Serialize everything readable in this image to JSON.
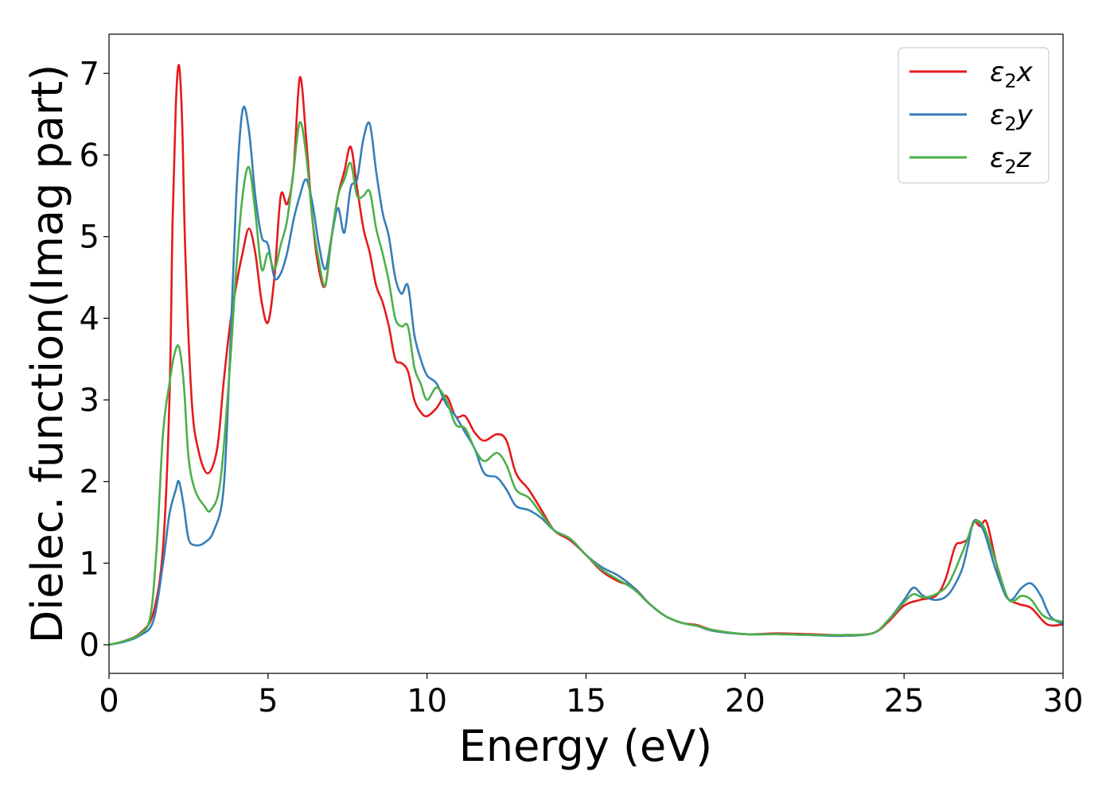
{
  "chart_data": {
    "type": "line",
    "xlabel": "Energy (eV)",
    "ylabel": "Dielec. function(Imag part)",
    "xlim": [
      0,
      30
    ],
    "ylim": [
      -0.35,
      7.48
    ],
    "xticks": [
      0,
      5,
      10,
      15,
      20,
      25,
      30
    ],
    "yticks": [
      0,
      1,
      2,
      3,
      4,
      5,
      6,
      7
    ],
    "grid": false,
    "legend_position": "top-right",
    "series": [
      {
        "name": "ε₂x",
        "legend": {
          "base": "ε",
          "sub": "2",
          "suffix": "x"
        },
        "color": "#e41a1c",
        "points": [
          [
            0,
            0
          ],
          [
            0.5,
            0.05
          ],
          [
            1.0,
            0.15
          ],
          [
            1.4,
            0.4
          ],
          [
            1.7,
            1.2
          ],
          [
            1.9,
            3.0
          ],
          [
            2.0,
            5.2
          ],
          [
            2.1,
            6.6
          ],
          [
            2.2,
            7.1
          ],
          [
            2.3,
            6.4
          ],
          [
            2.4,
            4.8
          ],
          [
            2.6,
            3.0
          ],
          [
            2.8,
            2.4
          ],
          [
            3.1,
            2.1
          ],
          [
            3.4,
            2.4
          ],
          [
            3.6,
            3.2
          ],
          [
            3.8,
            3.9
          ],
          [
            4.0,
            4.4
          ],
          [
            4.2,
            4.8
          ],
          [
            4.4,
            5.1
          ],
          [
            4.6,
            4.8
          ],
          [
            4.8,
            4.2
          ],
          [
            5.0,
            3.95
          ],
          [
            5.2,
            4.5
          ],
          [
            5.4,
            5.5
          ],
          [
            5.6,
            5.4
          ],
          [
            5.8,
            5.8
          ],
          [
            6.0,
            6.95
          ],
          [
            6.2,
            6.2
          ],
          [
            6.4,
            5.2
          ],
          [
            6.6,
            4.6
          ],
          [
            6.8,
            4.4
          ],
          [
            7.0,
            5.0
          ],
          [
            7.2,
            5.5
          ],
          [
            7.4,
            5.8
          ],
          [
            7.6,
            6.1
          ],
          [
            7.8,
            5.6
          ],
          [
            8.0,
            5.1
          ],
          [
            8.2,
            4.8
          ],
          [
            8.4,
            4.4
          ],
          [
            8.6,
            4.2
          ],
          [
            8.8,
            3.9
          ],
          [
            9.0,
            3.5
          ],
          [
            9.2,
            3.45
          ],
          [
            9.4,
            3.35
          ],
          [
            9.6,
            3.0
          ],
          [
            9.8,
            2.85
          ],
          [
            10.0,
            2.8
          ],
          [
            10.3,
            2.9
          ],
          [
            10.6,
            3.05
          ],
          [
            10.9,
            2.8
          ],
          [
            11.2,
            2.8
          ],
          [
            11.5,
            2.6
          ],
          [
            11.8,
            2.5
          ],
          [
            12.2,
            2.58
          ],
          [
            12.5,
            2.5
          ],
          [
            12.8,
            2.1
          ],
          [
            13.2,
            1.9
          ],
          [
            13.6,
            1.65
          ],
          [
            14.0,
            1.4
          ],
          [
            14.5,
            1.28
          ],
          [
            15.0,
            1.1
          ],
          [
            15.5,
            0.9
          ],
          [
            16.0,
            0.78
          ],
          [
            16.5,
            0.7
          ],
          [
            17.0,
            0.5
          ],
          [
            17.5,
            0.35
          ],
          [
            18.0,
            0.27
          ],
          [
            18.5,
            0.24
          ],
          [
            19.0,
            0.18
          ],
          [
            20.0,
            0.13
          ],
          [
            21.0,
            0.14
          ],
          [
            22.0,
            0.13
          ],
          [
            23.0,
            0.12
          ],
          [
            24.0,
            0.14
          ],
          [
            24.5,
            0.28
          ],
          [
            25.0,
            0.48
          ],
          [
            25.5,
            0.55
          ],
          [
            26.0,
            0.6
          ],
          [
            26.3,
            0.8
          ],
          [
            26.6,
            1.2
          ],
          [
            26.8,
            1.25
          ],
          [
            27.0,
            1.3
          ],
          [
            27.2,
            1.5
          ],
          [
            27.4,
            1.45
          ],
          [
            27.6,
            1.5
          ],
          [
            27.9,
            1.0
          ],
          [
            28.2,
            0.6
          ],
          [
            28.6,
            0.5
          ],
          [
            29.0,
            0.45
          ],
          [
            29.5,
            0.25
          ],
          [
            30.0,
            0.25
          ]
        ]
      },
      {
        "name": "ε₂y",
        "legend": {
          "base": "ε",
          "sub": "2",
          "suffix": "y"
        },
        "color": "#377eb8",
        "points": [
          [
            0,
            0
          ],
          [
            0.5,
            0.04
          ],
          [
            1.0,
            0.12
          ],
          [
            1.4,
            0.3
          ],
          [
            1.7,
            1.0
          ],
          [
            1.9,
            1.6
          ],
          [
            2.1,
            1.9
          ],
          [
            2.2,
            2.0
          ],
          [
            2.35,
            1.7
          ],
          [
            2.5,
            1.3
          ],
          [
            2.7,
            1.22
          ],
          [
            3.0,
            1.25
          ],
          [
            3.3,
            1.4
          ],
          [
            3.6,
            1.9
          ],
          [
            3.8,
            3.5
          ],
          [
            4.0,
            5.5
          ],
          [
            4.2,
            6.55
          ],
          [
            4.4,
            6.3
          ],
          [
            4.6,
            5.5
          ],
          [
            4.8,
            5.0
          ],
          [
            5.0,
            4.9
          ],
          [
            5.2,
            4.5
          ],
          [
            5.4,
            4.55
          ],
          [
            5.6,
            4.8
          ],
          [
            5.8,
            5.2
          ],
          [
            6.0,
            5.5
          ],
          [
            6.2,
            5.7
          ],
          [
            6.4,
            5.4
          ],
          [
            6.6,
            4.9
          ],
          [
            6.8,
            4.6
          ],
          [
            7.0,
            5.0
          ],
          [
            7.2,
            5.35
          ],
          [
            7.4,
            5.05
          ],
          [
            7.6,
            5.6
          ],
          [
            7.8,
            5.7
          ],
          [
            8.0,
            6.2
          ],
          [
            8.2,
            6.38
          ],
          [
            8.4,
            5.8
          ],
          [
            8.6,
            5.3
          ],
          [
            8.8,
            5.0
          ],
          [
            9.0,
            4.5
          ],
          [
            9.2,
            4.3
          ],
          [
            9.4,
            4.4
          ],
          [
            9.6,
            3.8
          ],
          [
            9.8,
            3.5
          ],
          [
            10.0,
            3.3
          ],
          [
            10.3,
            3.2
          ],
          [
            10.6,
            2.95
          ],
          [
            10.9,
            2.8
          ],
          [
            11.2,
            2.6
          ],
          [
            11.5,
            2.4
          ],
          [
            11.8,
            2.1
          ],
          [
            12.2,
            2.05
          ],
          [
            12.5,
            1.9
          ],
          [
            12.8,
            1.7
          ],
          [
            13.2,
            1.65
          ],
          [
            13.6,
            1.55
          ],
          [
            14.0,
            1.4
          ],
          [
            14.5,
            1.3
          ],
          [
            15.0,
            1.1
          ],
          [
            15.5,
            0.95
          ],
          [
            16.0,
            0.85
          ],
          [
            16.5,
            0.7
          ],
          [
            17.0,
            0.5
          ],
          [
            17.5,
            0.35
          ],
          [
            18.0,
            0.27
          ],
          [
            18.5,
            0.23
          ],
          [
            19.0,
            0.17
          ],
          [
            20.0,
            0.13
          ],
          [
            21.0,
            0.13
          ],
          [
            22.0,
            0.12
          ],
          [
            23.0,
            0.11
          ],
          [
            24.0,
            0.14
          ],
          [
            24.5,
            0.3
          ],
          [
            25.0,
            0.55
          ],
          [
            25.3,
            0.7
          ],
          [
            25.6,
            0.6
          ],
          [
            26.0,
            0.55
          ],
          [
            26.4,
            0.62
          ],
          [
            26.8,
            0.9
          ],
          [
            27.0,
            1.2
          ],
          [
            27.2,
            1.52
          ],
          [
            27.5,
            1.4
          ],
          [
            27.9,
            0.9
          ],
          [
            28.3,
            0.55
          ],
          [
            28.7,
            0.7
          ],
          [
            29.0,
            0.75
          ],
          [
            29.3,
            0.6
          ],
          [
            29.6,
            0.35
          ],
          [
            30.0,
            0.25
          ]
        ]
      },
      {
        "name": "ε₂z",
        "legend": {
          "base": "ε",
          "sub": "2",
          "suffix": "z"
        },
        "color": "#4daf4a",
        "points": [
          [
            0,
            0
          ],
          [
            0.5,
            0.05
          ],
          [
            1.0,
            0.14
          ],
          [
            1.3,
            0.35
          ],
          [
            1.5,
            1.2
          ],
          [
            1.7,
            2.6
          ],
          [
            1.9,
            3.2
          ],
          [
            2.05,
            3.55
          ],
          [
            2.2,
            3.65
          ],
          [
            2.35,
            3.2
          ],
          [
            2.5,
            2.3
          ],
          [
            2.7,
            1.9
          ],
          [
            3.0,
            1.7
          ],
          [
            3.2,
            1.65
          ],
          [
            3.5,
            2.0
          ],
          [
            3.8,
            3.4
          ],
          [
            4.0,
            4.6
          ],
          [
            4.2,
            5.5
          ],
          [
            4.4,
            5.85
          ],
          [
            4.6,
            5.3
          ],
          [
            4.8,
            4.6
          ],
          [
            5.0,
            4.8
          ],
          [
            5.2,
            4.6
          ],
          [
            5.4,
            4.9
          ],
          [
            5.6,
            5.2
          ],
          [
            5.8,
            5.8
          ],
          [
            6.0,
            6.4
          ],
          [
            6.2,
            6.0
          ],
          [
            6.4,
            5.2
          ],
          [
            6.6,
            4.7
          ],
          [
            6.8,
            4.4
          ],
          [
            7.0,
            5.0
          ],
          [
            7.2,
            5.5
          ],
          [
            7.4,
            5.7
          ],
          [
            7.6,
            5.9
          ],
          [
            7.8,
            5.5
          ],
          [
            8.0,
            5.5
          ],
          [
            8.2,
            5.55
          ],
          [
            8.4,
            5.1
          ],
          [
            8.6,
            4.8
          ],
          [
            8.8,
            4.45
          ],
          [
            9.0,
            4.0
          ],
          [
            9.2,
            3.9
          ],
          [
            9.4,
            3.9
          ],
          [
            9.6,
            3.4
          ],
          [
            9.8,
            3.2
          ],
          [
            10.0,
            3.0
          ],
          [
            10.3,
            3.15
          ],
          [
            10.6,
            3.0
          ],
          [
            10.9,
            2.7
          ],
          [
            11.2,
            2.65
          ],
          [
            11.5,
            2.4
          ],
          [
            11.8,
            2.25
          ],
          [
            12.2,
            2.35
          ],
          [
            12.5,
            2.2
          ],
          [
            12.8,
            1.9
          ],
          [
            13.2,
            1.8
          ],
          [
            13.6,
            1.6
          ],
          [
            14.0,
            1.4
          ],
          [
            14.5,
            1.3
          ],
          [
            15.0,
            1.1
          ],
          [
            15.5,
            0.92
          ],
          [
            16.0,
            0.8
          ],
          [
            16.5,
            0.68
          ],
          [
            17.0,
            0.5
          ],
          [
            17.5,
            0.35
          ],
          [
            18.0,
            0.27
          ],
          [
            18.5,
            0.23
          ],
          [
            19.0,
            0.18
          ],
          [
            20.0,
            0.13
          ],
          [
            21.0,
            0.13
          ],
          [
            22.0,
            0.12
          ],
          [
            23.0,
            0.12
          ],
          [
            24.0,
            0.14
          ],
          [
            24.5,
            0.3
          ],
          [
            25.0,
            0.52
          ],
          [
            25.3,
            0.62
          ],
          [
            25.6,
            0.58
          ],
          [
            26.0,
            0.62
          ],
          [
            26.4,
            0.75
          ],
          [
            26.8,
            1.1
          ],
          [
            27.0,
            1.3
          ],
          [
            27.2,
            1.5
          ],
          [
            27.5,
            1.45
          ],
          [
            27.9,
            1.0
          ],
          [
            28.3,
            0.55
          ],
          [
            28.7,
            0.6
          ],
          [
            29.0,
            0.55
          ],
          [
            29.4,
            0.35
          ],
          [
            30.0,
            0.28
          ]
        ]
      }
    ]
  }
}
